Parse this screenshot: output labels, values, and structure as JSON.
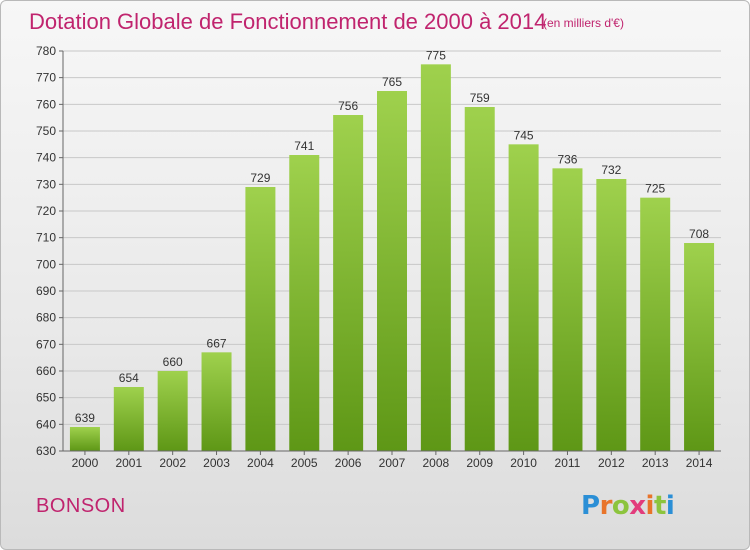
{
  "header": {
    "title": "Dotation Globale de Fonctionnement de 2000 à 2014",
    "subtitle": "(en milliers d'€)"
  },
  "commune": "BONSON",
  "logo": {
    "text": "Proxiti"
  },
  "colors": {
    "bar_top": "#9fd14d",
    "bar_bottom": "#5e9716",
    "title": "#c0246e",
    "grid": "#c8c8c8"
  },
  "chart_data": {
    "type": "bar",
    "title": "Dotation Globale de Fonctionnement de 2000 à 2014",
    "subtitle": "(en milliers d'€)",
    "xlabel": "",
    "ylabel": "",
    "categories": [
      "2000",
      "2001",
      "2002",
      "2003",
      "2004",
      "2005",
      "2006",
      "2007",
      "2008",
      "2009",
      "2010",
      "2011",
      "2012",
      "2013",
      "2014"
    ],
    "values": [
      639,
      654,
      660,
      667,
      729,
      741,
      756,
      765,
      775,
      759,
      745,
      736,
      732,
      725,
      708
    ],
    "ylim": [
      630,
      780
    ],
    "yticks": [
      630,
      640,
      650,
      660,
      670,
      680,
      690,
      700,
      710,
      720,
      730,
      740,
      750,
      760,
      770,
      780
    ],
    "grid": true,
    "legend": "none",
    "data_labels": true
  }
}
